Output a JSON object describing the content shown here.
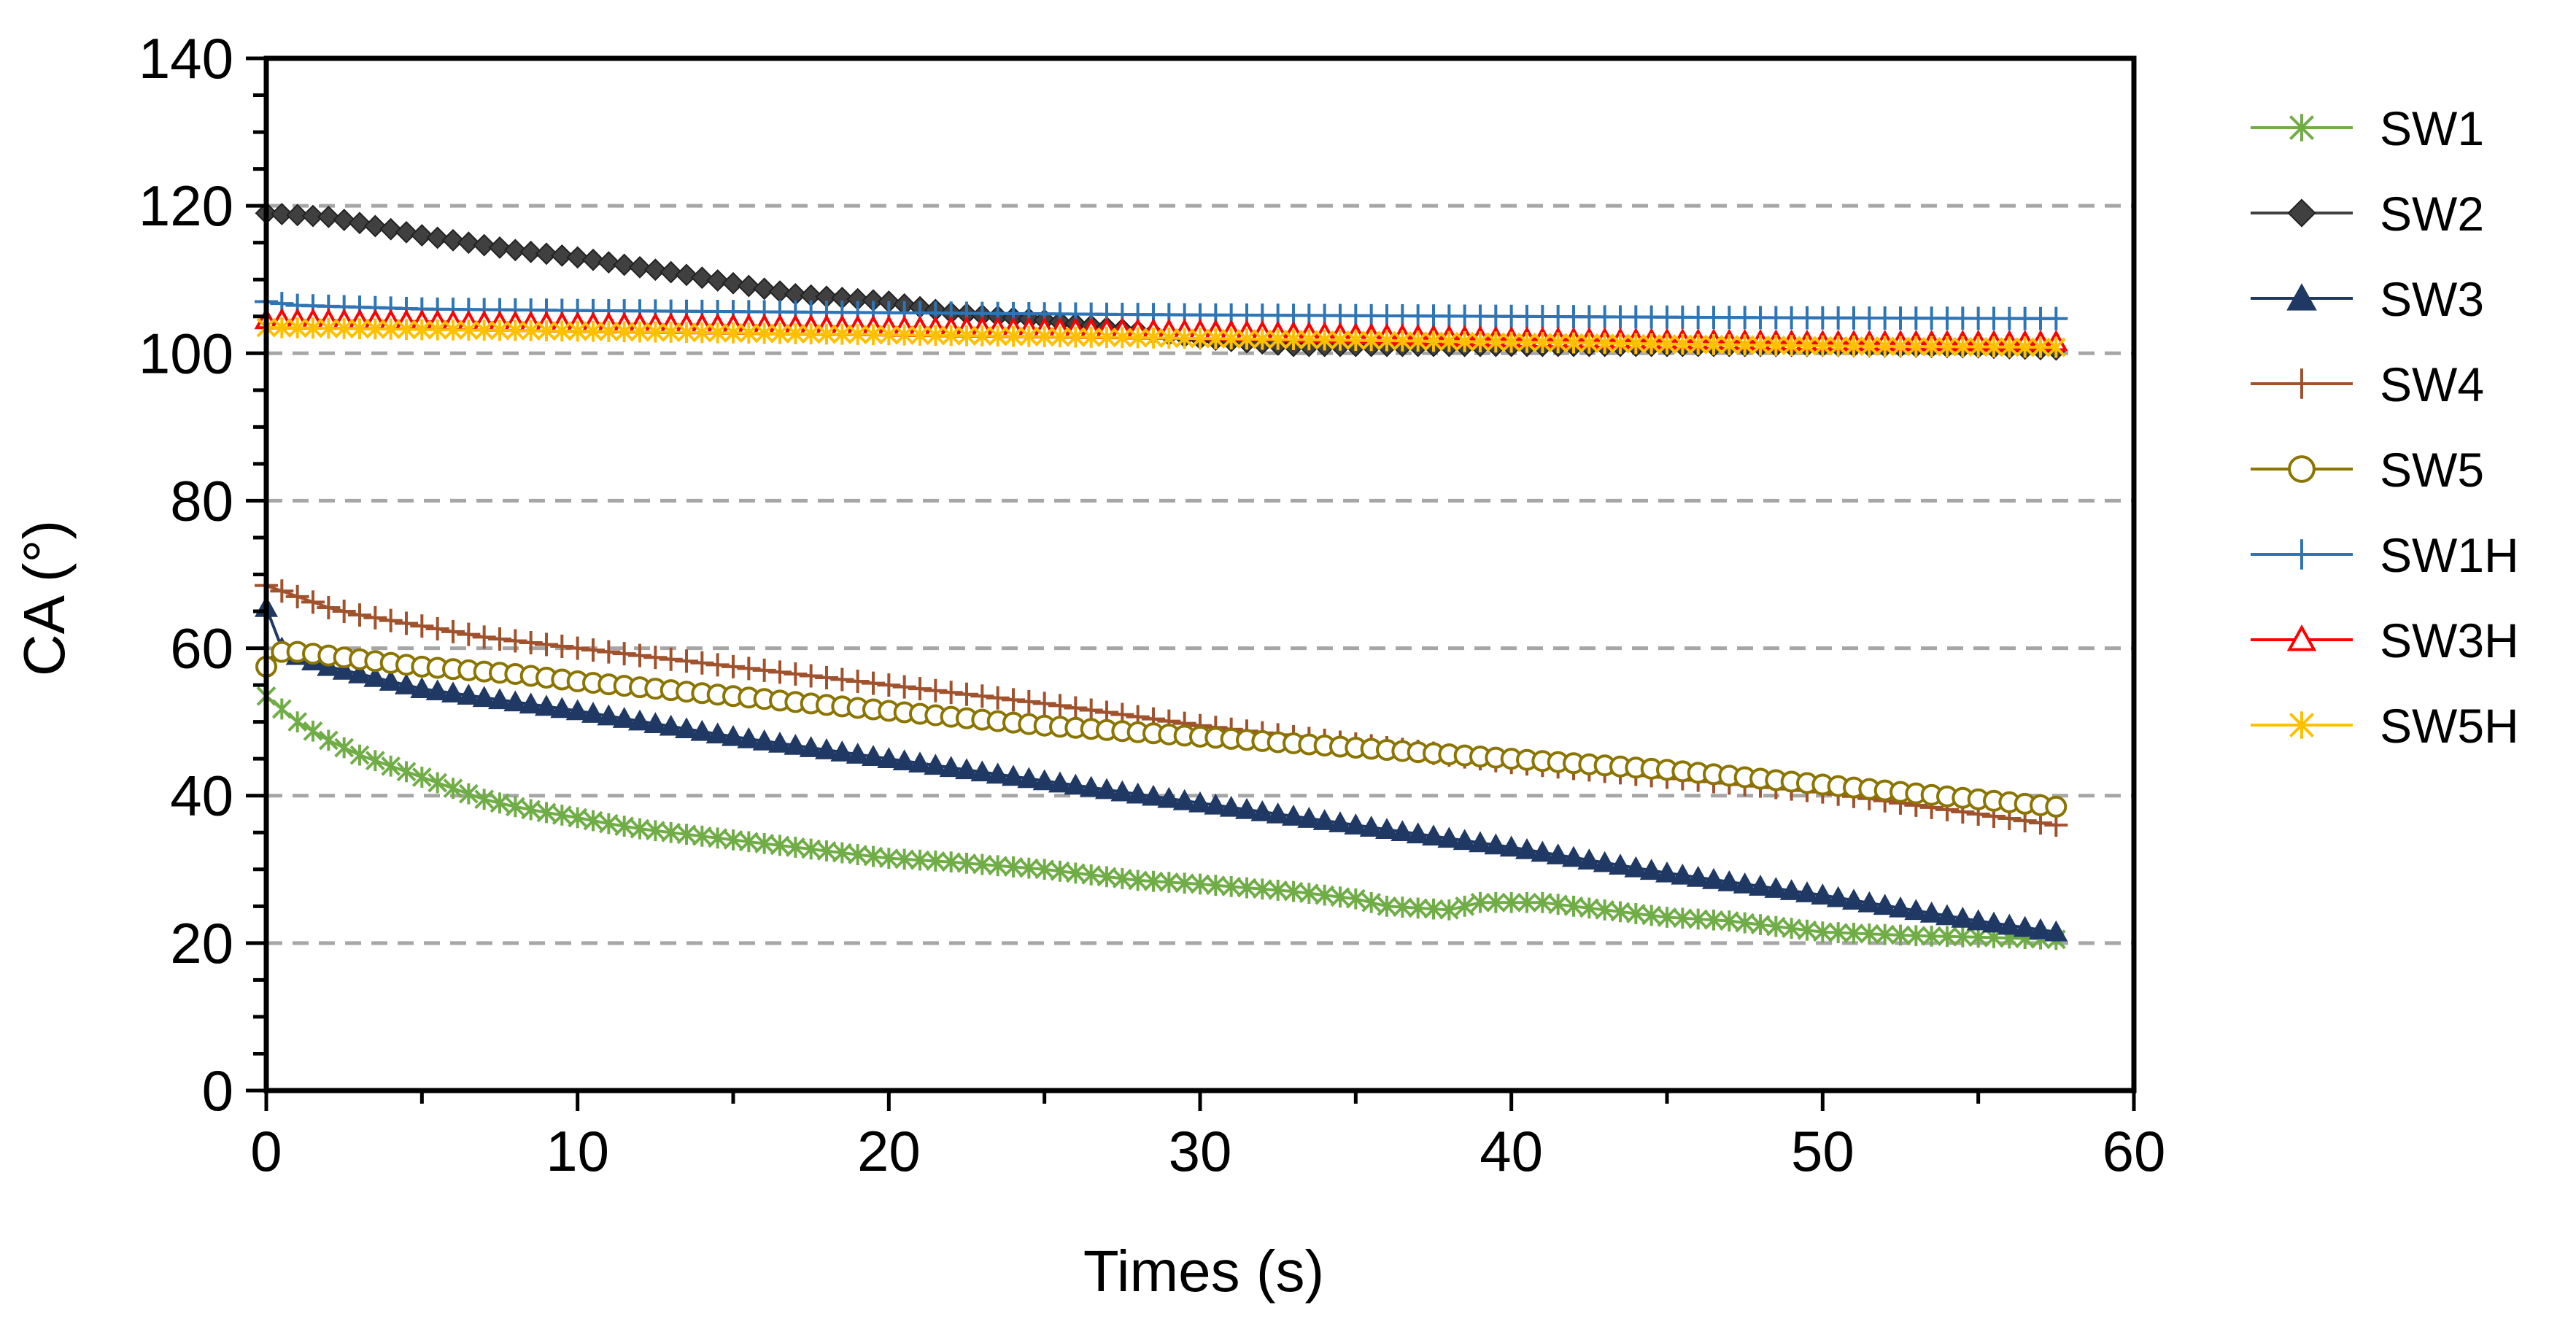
{
  "chart_data": {
    "type": "line",
    "title": "",
    "xlabel": "Times (s)",
    "ylabel": "CA (°)",
    "xlim": [
      0,
      60
    ],
    "ylim": [
      0,
      140
    ],
    "xticks": [
      0,
      10,
      20,
      30,
      40,
      50,
      60
    ],
    "yticks": [
      0,
      20,
      40,
      60,
      80,
      100,
      120,
      140
    ],
    "x_minor_step": 5,
    "y_minor_step": 5,
    "grid": "horizontal dashed at major y ticks",
    "legend_position": "right",
    "series": [
      {
        "name": "SW1",
        "color": "#70AD47",
        "marker": "x-star",
        "points": [
          [
            0,
            53.5
          ],
          [
            1,
            50
          ],
          [
            2,
            47.5
          ],
          [
            3,
            45.5
          ],
          [
            4,
            44
          ],
          [
            5,
            42.5
          ],
          [
            6,
            41
          ],
          [
            7,
            39.5
          ],
          [
            8,
            38.5
          ],
          [
            9,
            37.7
          ],
          [
            10,
            37
          ],
          [
            11,
            36.2
          ],
          [
            12,
            35.5
          ],
          [
            13,
            35
          ],
          [
            14,
            34.5
          ],
          [
            15,
            34
          ],
          [
            17,
            33
          ],
          [
            20,
            31.5
          ],
          [
            22,
            31
          ],
          [
            25,
            30
          ],
          [
            28,
            28.5
          ],
          [
            30,
            28
          ],
          [
            33,
            27
          ],
          [
            35,
            26
          ],
          [
            36,
            25
          ],
          [
            38,
            24.5
          ],
          [
            39,
            25.5
          ],
          [
            41,
            25.5
          ],
          [
            43,
            24.5
          ],
          [
            45,
            23.5
          ],
          [
            47,
            23
          ],
          [
            50,
            21.5
          ],
          [
            53,
            21
          ],
          [
            55,
            20.8
          ],
          [
            57.5,
            20.5
          ]
        ]
      },
      {
        "name": "SW2",
        "color": "#404040",
        "marker": "diamond",
        "points": [
          [
            0,
            119
          ],
          [
            2,
            118.5
          ],
          [
            5,
            116
          ],
          [
            8,
            114
          ],
          [
            10,
            113
          ],
          [
            13,
            111
          ],
          [
            15,
            109.5
          ],
          [
            17,
            108
          ],
          [
            20,
            107
          ],
          [
            22,
            105.5
          ],
          [
            25,
            104.5
          ],
          [
            28,
            103
          ],
          [
            30,
            102
          ],
          [
            33,
            101
          ],
          [
            35,
            101
          ],
          [
            40,
            101
          ],
          [
            45,
            101
          ],
          [
            50,
            101
          ],
          [
            55,
            100.8
          ],
          [
            57.5,
            100.5
          ]
        ]
      },
      {
        "name": "SW3",
        "color": "#1F3864",
        "marker": "triangle",
        "points": [
          [
            0,
            65.5
          ],
          [
            0.5,
            60
          ],
          [
            1,
            59
          ],
          [
            2,
            57.5
          ],
          [
            5,
            54.5
          ],
          [
            10,
            51.5
          ],
          [
            15,
            48
          ],
          [
            20,
            45
          ],
          [
            25,
            42
          ],
          [
            30,
            39
          ],
          [
            35,
            36
          ],
          [
            40,
            33
          ],
          [
            45,
            29.5
          ],
          [
            50,
            26.5
          ],
          [
            55,
            23
          ],
          [
            57.5,
            21.5
          ]
        ]
      },
      {
        "name": "SW4",
        "color": "#A0522D",
        "marker": "plus",
        "points": [
          [
            0,
            68.5
          ],
          [
            1,
            67
          ],
          [
            2,
            65.5
          ],
          [
            3,
            64.5
          ],
          [
            5,
            63
          ],
          [
            7,
            61.5
          ],
          [
            10,
            60
          ],
          [
            13,
            58.5
          ],
          [
            15,
            57.5
          ],
          [
            20,
            55
          ],
          [
            25,
            52.5
          ],
          [
            30,
            49.5
          ],
          [
            35,
            47
          ],
          [
            40,
            44.5
          ],
          [
            45,
            42.5
          ],
          [
            50,
            40.5
          ],
          [
            55,
            37.5
          ],
          [
            57.5,
            36
          ]
        ]
      },
      {
        "name": "SW5",
        "color": "#8B7500",
        "marker": "circle",
        "points": [
          [
            0,
            57.5
          ],
          [
            0.5,
            59.5
          ],
          [
            1,
            59.5
          ],
          [
            3,
            58.5
          ],
          [
            5,
            57.5
          ],
          [
            8,
            56.5
          ],
          [
            10,
            55.5
          ],
          [
            15,
            53.5
          ],
          [
            20,
            51.5
          ],
          [
            25,
            49.5
          ],
          [
            30,
            48
          ],
          [
            35,
            46.5
          ],
          [
            40,
            45
          ],
          [
            45,
            43.5
          ],
          [
            50,
            41.5
          ],
          [
            55,
            39.5
          ],
          [
            57.5,
            38.5
          ]
        ]
      },
      {
        "name": "SW1H",
        "color": "#2E75B6",
        "marker": "plus",
        "points": [
          [
            0,
            107
          ],
          [
            1,
            106.5
          ],
          [
            5,
            106
          ],
          [
            10,
            105.8
          ],
          [
            20,
            105.5
          ],
          [
            30,
            105.2
          ],
          [
            40,
            105
          ],
          [
            50,
            104.8
          ],
          [
            57.5,
            104.7
          ]
        ]
      },
      {
        "name": "SW3H",
        "color": "#FF0000",
        "marker": "open-triangle",
        "points": [
          [
            0,
            104.5
          ],
          [
            5,
            104.3
          ],
          [
            10,
            104
          ],
          [
            20,
            103.5
          ],
          [
            30,
            103
          ],
          [
            40,
            102
          ],
          [
            50,
            101.5
          ],
          [
            57.5,
            101.5
          ]
        ]
      },
      {
        "name": "SW5H",
        "color": "#FFC000",
        "marker": "x-star",
        "points": [
          [
            0,
            103.5
          ],
          [
            5,
            103.2
          ],
          [
            10,
            103
          ],
          [
            20,
            102.5
          ],
          [
            30,
            102
          ],
          [
            40,
            101.5
          ],
          [
            50,
            101
          ],
          [
            57.5,
            100.8
          ]
        ]
      }
    ]
  }
}
